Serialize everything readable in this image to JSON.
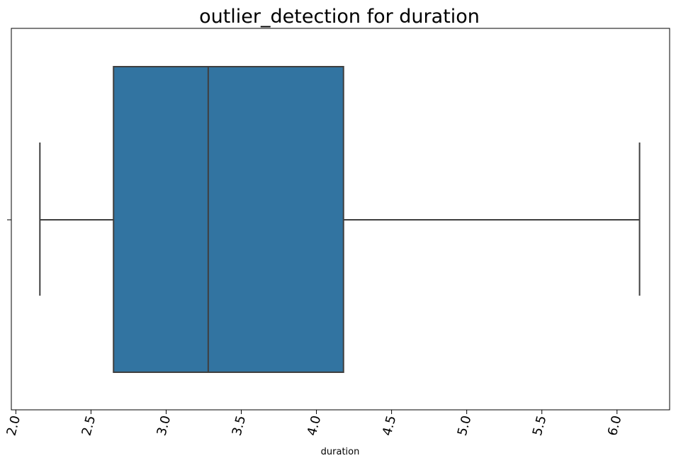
{
  "chart_data": {
    "type": "box",
    "title": "outlier_detection for duration",
    "xlabel": "duration",
    "ylabel": "",
    "xlim": [
      1.97,
      6.35
    ],
    "xticks": [
      "2.0",
      "2.5",
      "3.0",
      "3.5",
      "4.0",
      "4.5",
      "5.0",
      "5.5",
      "6.0"
    ],
    "xtick_values": [
      2.0,
      2.5,
      3.0,
      3.5,
      4.0,
      4.5,
      5.0,
      5.5,
      6.0
    ],
    "tick_rotation_deg": -75,
    "box": {
      "whisker_low": 2.16,
      "q1": 2.65,
      "median": 3.28,
      "q3": 4.18,
      "whisker_high": 6.15
    },
    "outliers": [],
    "colors": {
      "box_fill": "#3274a1",
      "line": "#3f3f3f",
      "axes": "#000000"
    },
    "grid": false
  }
}
